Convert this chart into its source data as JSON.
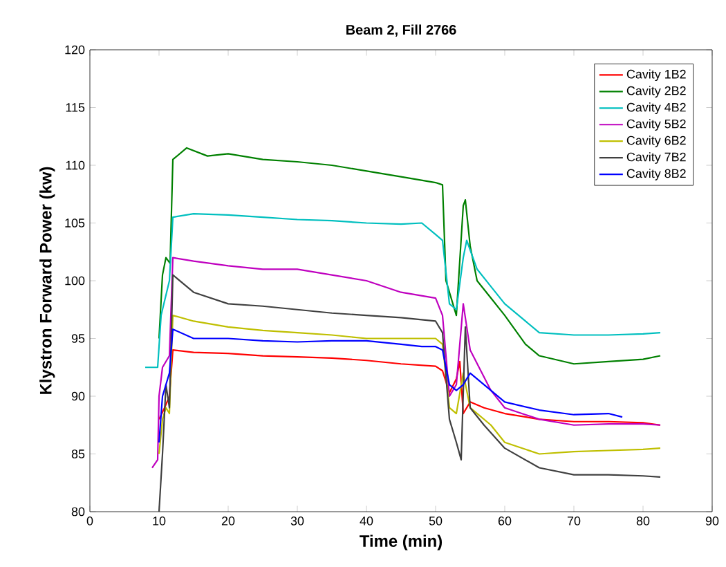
{
  "chart_data": {
    "type": "line",
    "title": "Beam 2, Fill 2766",
    "xlabel": "Time (min)",
    "ylabel": "Klystron Forward Power (kw)",
    "xlim": [
      0,
      90
    ],
    "ylim": [
      80,
      120
    ],
    "xticks": [
      0,
      10,
      20,
      30,
      40,
      50,
      60,
      70,
      80,
      90
    ],
    "yticks": [
      80,
      85,
      90,
      95,
      100,
      105,
      110,
      115,
      120
    ],
    "grid": false,
    "legend": "top right",
    "line_style": "solid",
    "marker": "none",
    "series": [
      {
        "name": "Cavity 1B2",
        "color": "#ff0000",
        "x": [
          10,
          10.8,
          11.5,
          12,
          15,
          20,
          25,
          30,
          35,
          40,
          45,
          50,
          51,
          52,
          53,
          53.5,
          54,
          55,
          57,
          60,
          65,
          70,
          75,
          80,
          82.5
        ],
        "values": [
          88,
          89,
          90,
          94,
          93.8,
          93.7,
          93.5,
          93.4,
          93.3,
          93.1,
          92.8,
          92.6,
          92.2,
          90.3,
          91.5,
          93,
          88.5,
          89.5,
          89,
          88.5,
          88,
          87.8,
          87.8,
          87.7,
          87.5
        ]
      },
      {
        "name": "Cavity 2B2",
        "color": "#008000",
        "x": [
          10,
          10.5,
          11,
          11.6,
          12,
          14,
          17,
          20,
          25,
          30,
          35,
          40,
          45,
          50,
          51,
          51.5,
          53,
          54,
          54.3,
          55,
          56,
          58,
          60,
          63,
          65,
          70,
          75,
          80,
          82.5
        ],
        "values": [
          95,
          100.5,
          102,
          101.5,
          110.5,
          111.5,
          110.8,
          111,
          110.5,
          110.3,
          110,
          109.5,
          109,
          108.5,
          108.3,
          100,
          97,
          106.5,
          107,
          103,
          100,
          98.5,
          97,
          94.5,
          93.5,
          92.8,
          93,
          93.2,
          93.5
        ]
      },
      {
        "name": "Cavity 4B2",
        "color": "#00bfbf",
        "x": [
          8,
          9.8,
          10.3,
          11.5,
          12,
          15,
          20,
          25,
          30,
          35,
          40,
          45,
          48,
          50,
          51,
          52,
          53,
          54,
          54.5,
          56,
          58,
          60,
          63,
          65,
          70,
          75,
          80,
          82.5
        ],
        "values": [
          92.5,
          92.5,
          97,
          100,
          105.5,
          105.8,
          105.7,
          105.5,
          105.3,
          105.2,
          105,
          104.9,
          105,
          104,
          103.5,
          98,
          97.5,
          102,
          103.5,
          101,
          99.5,
          98,
          96.5,
          95.5,
          95.3,
          95.3,
          95.4,
          95.5
        ]
      },
      {
        "name": "Cavity 5B2",
        "color": "#bf00bf",
        "x": [
          9,
          9.8,
          10,
          10.5,
          11.5,
          12,
          15,
          20,
          25,
          30,
          35,
          40,
          45,
          50,
          51,
          52,
          53,
          54,
          55,
          58,
          60,
          65,
          70,
          75,
          80,
          82.5
        ],
        "values": [
          83.8,
          84.5,
          90,
          92.5,
          93.5,
          102,
          101.7,
          101.3,
          101,
          101,
          100.5,
          100,
          99,
          98.5,
          97,
          90,
          91,
          98,
          94,
          90.5,
          89,
          88,
          87.5,
          87.6,
          87.6,
          87.5
        ]
      },
      {
        "name": "Cavity 6B2",
        "color": "#bfbf00",
        "x": [
          10,
          10.5,
          11,
          11.5,
          12,
          15,
          20,
          25,
          30,
          35,
          40,
          45,
          50,
          51,
          52,
          53,
          54,
          55,
          58,
          60,
          65,
          70,
          75,
          80,
          82.5
        ],
        "values": [
          85,
          88,
          89,
          88.5,
          97,
          96.5,
          96,
          95.7,
          95.5,
          95.3,
          95,
          95,
          95,
          94.5,
          89,
          88.5,
          92,
          89,
          87.5,
          86,
          85,
          85.2,
          85.3,
          85.4,
          85.5
        ]
      },
      {
        "name": "Cavity 7B2",
        "color": "#404040",
        "x": [
          10,
          10.5,
          11,
          11.5,
          12,
          15,
          20,
          25,
          30,
          35,
          40,
          45,
          50,
          51,
          52,
          53,
          53.7,
          54.3,
          55,
          57,
          60,
          65,
          70,
          75,
          80,
          82.5
        ],
        "values": [
          80,
          85,
          91,
          89,
          100.5,
          99,
          98,
          97.8,
          97.5,
          97.2,
          97,
          96.8,
          96.5,
          95.5,
          88,
          86,
          84.5,
          96,
          89,
          87.5,
          85.5,
          83.8,
          83.2,
          83.2,
          83.1,
          83
        ]
      },
      {
        "name": "Cavity 8B2",
        "color": "#0000ff",
        "x": [
          10,
          10.5,
          11,
          11.5,
          12,
          15,
          20,
          25,
          30,
          35,
          40,
          45,
          48,
          50,
          51,
          52,
          53,
          54,
          55,
          58,
          60,
          65,
          70,
          75,
          77
        ],
        "values": [
          86,
          90,
          91,
          92,
          95.8,
          95,
          95,
          94.8,
          94.7,
          94.8,
          94.8,
          94.5,
          94.3,
          94.3,
          94,
          91,
          90.5,
          91,
          92,
          90.5,
          89.5,
          88.8,
          88.4,
          88.5,
          88.2
        ]
      }
    ]
  }
}
